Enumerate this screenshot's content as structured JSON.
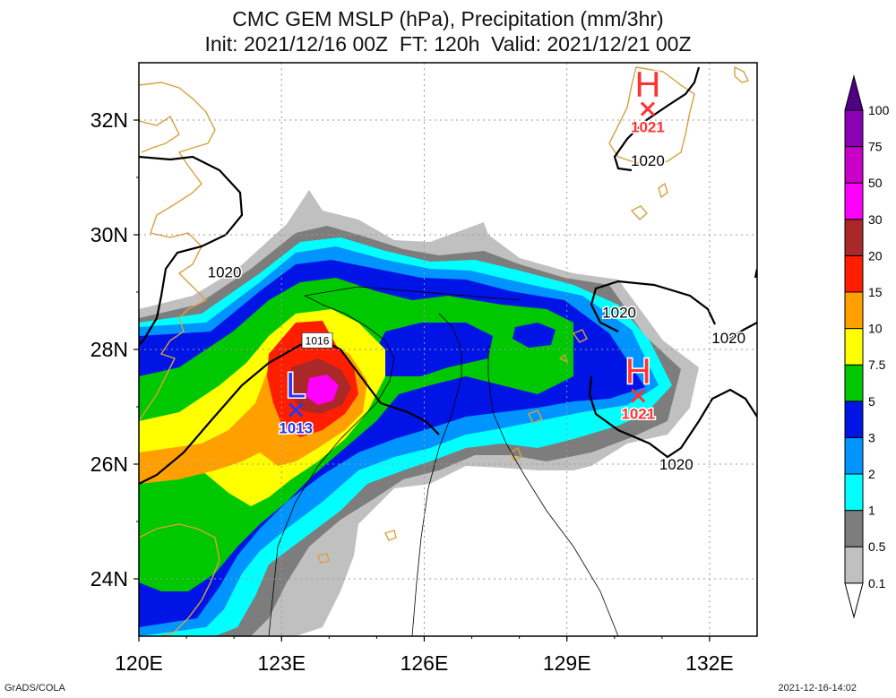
{
  "title": "CMC GEM MSLP (hPa), Precipitation (mm/3hr)",
  "subtitle": "Init: 2021/12/16 00Z  FT: 120h  Valid: 2021/12/21 00Z",
  "footer_left": "GrADS/COLA",
  "footer_right": "2021-12-16-14:02",
  "chart_data": {
    "type": "heatmap",
    "title": "CMC GEM MSLP (hPa), Precipitation (mm/3hr)",
    "subtitle": "Init: 2021/12/16 00Z  FT: 120h  Valid: 2021/12/21 00Z",
    "xlim": [
      120,
      133
    ],
    "ylim": [
      23,
      33
    ],
    "x_ticks": [
      120,
      123,
      126,
      129,
      132
    ],
    "x_tick_labels": [
      "120E",
      "123E",
      "126E",
      "129E",
      "132E"
    ],
    "y_ticks": [
      24,
      26,
      28,
      30,
      32
    ],
    "y_tick_labels": [
      "24N",
      "26N",
      "28N",
      "30N",
      "32N"
    ],
    "grid": true,
    "colorbar": {
      "levels": [
        "0.1",
        "0.5",
        "1",
        "2",
        "3",
        "5",
        "7.5",
        "10",
        "15",
        "20",
        "30",
        "50",
        "75",
        "100"
      ],
      "colors": [
        "#ffffff",
        "#c0c0c0",
        "#7d7d7d",
        "#00ffff",
        "#0094ff",
        "#0014e6",
        "#00c800",
        "#ffff00",
        "#ffa000",
        "#ff1e00",
        "#aa2828",
        "#ff00ff",
        "#c800c8",
        "#8c00b4",
        "#500082"
      ]
    },
    "isobars": [
      {
        "label": "1020",
        "lon": 121.8,
        "lat": 29.35
      },
      {
        "label": "1020",
        "lon": 130.7,
        "lat": 31.3
      },
      {
        "label": "1020",
        "lon": 130.1,
        "lat": 28.65
      },
      {
        "label": "1020",
        "lon": 132.4,
        "lat": 28.2
      },
      {
        "label": "1020",
        "lon": 131.3,
        "lat": 26.0
      },
      {
        "label": "1016",
        "lon": 123.75,
        "lat": 28.15
      }
    ],
    "pressure_centers": [
      {
        "type": "H",
        "value": "1021",
        "lon": 130.7,
        "lat": 32.35
      },
      {
        "type": "H",
        "value": "1021",
        "lon": 130.5,
        "lat": 27.35
      },
      {
        "type": "L",
        "value": "1013",
        "lon": 123.3,
        "lat": 27.1
      }
    ]
  }
}
